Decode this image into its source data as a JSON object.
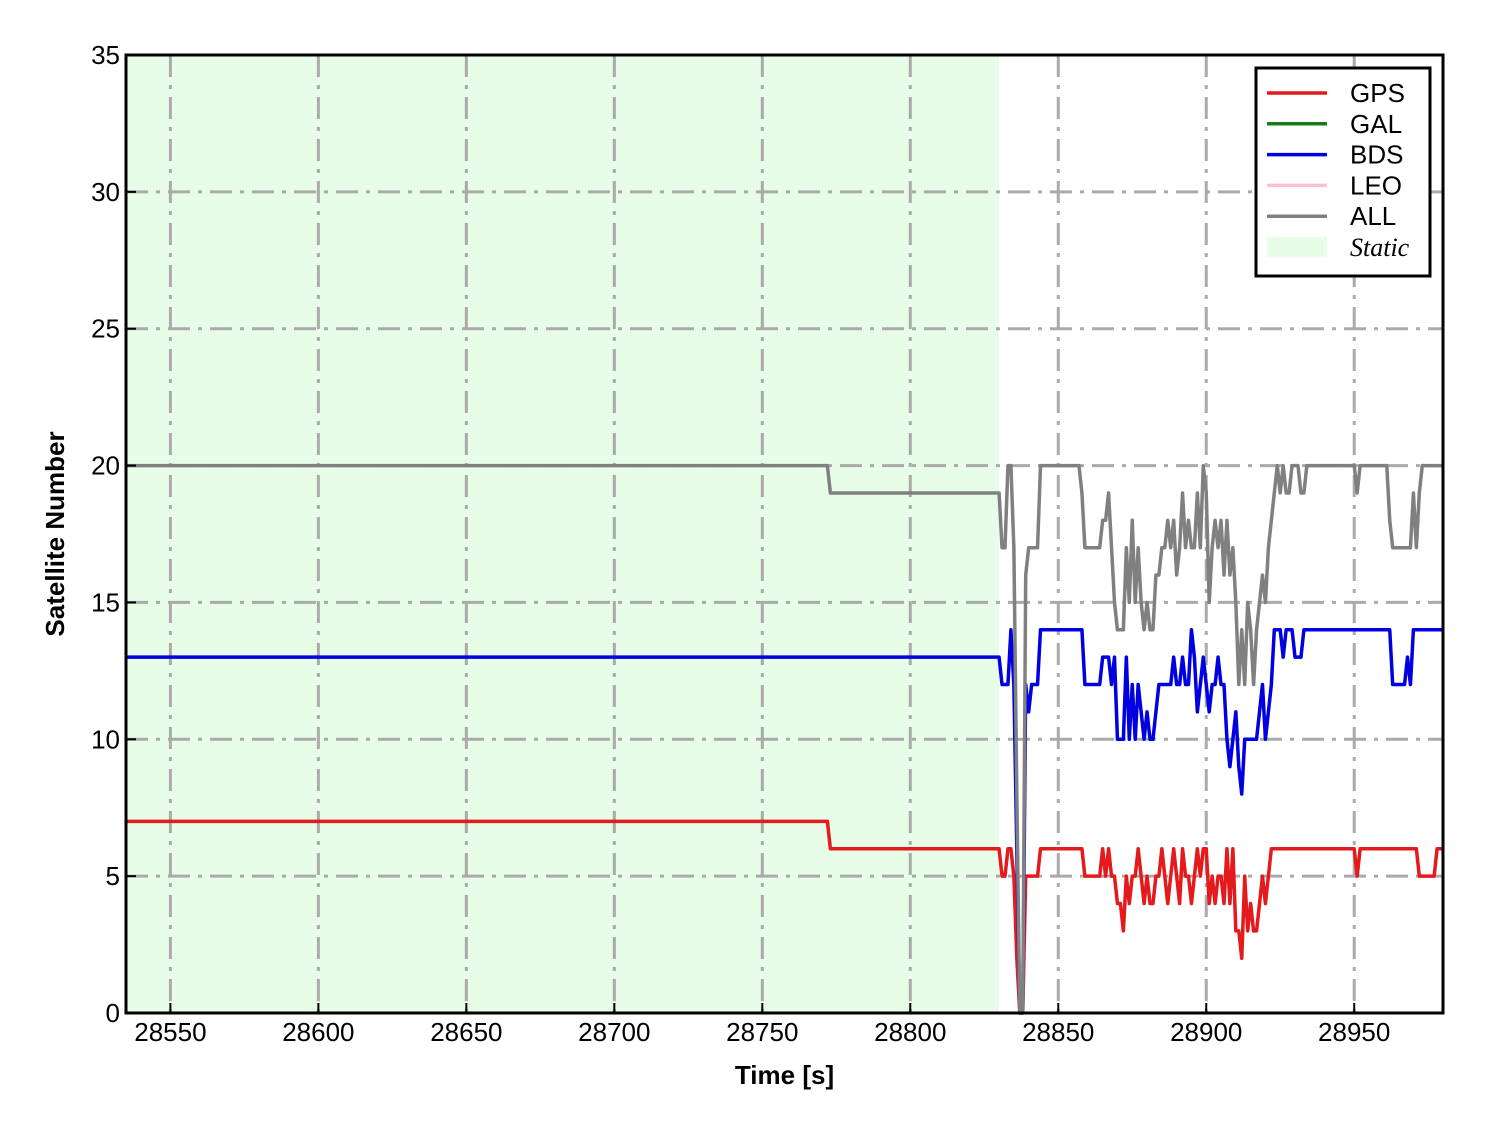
{
  "chart_data": {
    "type": "line",
    "xlabel": "Time [s]",
    "ylabel": "Satellite Number",
    "xlim": [
      28535,
      28980
    ],
    "ylim": [
      0,
      35
    ],
    "xticks": [
      28550,
      28600,
      28650,
      28700,
      28750,
      28800,
      28850,
      28900,
      28950
    ],
    "yticks": [
      0,
      5,
      10,
      15,
      20,
      25,
      30,
      35
    ],
    "grid": true,
    "legend_position": "top-right",
    "static_region": {
      "label": "Static",
      "x_start": 28535,
      "x_end": 28830,
      "color": "#e8fde8"
    },
    "series": [
      {
        "name": "GPS",
        "color": "#e41a1c",
        "points": [
          [
            28535,
            7
          ],
          [
            28772,
            7
          ],
          [
            28773,
            6
          ],
          [
            28830,
            6
          ],
          [
            28831,
            5
          ],
          [
            28832,
            5
          ],
          [
            28833,
            6
          ],
          [
            28834,
            6
          ],
          [
            28835,
            5
          ],
          [
            28836,
            2
          ],
          [
            28837,
            0
          ],
          [
            28838,
            0
          ],
          [
            28839,
            5
          ],
          [
            28843,
            5
          ],
          [
            28844,
            6
          ],
          [
            28858,
            6
          ],
          [
            28859,
            5
          ],
          [
            28864,
            5
          ],
          [
            28865,
            6
          ],
          [
            28866,
            5
          ],
          [
            28867,
            6
          ],
          [
            28868,
            5
          ],
          [
            28869,
            5
          ],
          [
            28870,
            4
          ],
          [
            28871,
            4
          ],
          [
            28872,
            3
          ],
          [
            28873,
            5
          ],
          [
            28874,
            4
          ],
          [
            28875,
            5
          ],
          [
            28876,
            5
          ],
          [
            28877,
            6
          ],
          [
            28878,
            5
          ],
          [
            28879,
            4
          ],
          [
            28880,
            5
          ],
          [
            28881,
            4
          ],
          [
            28882,
            4
          ],
          [
            28883,
            5
          ],
          [
            28884,
            5
          ],
          [
            28885,
            6
          ],
          [
            28886,
            5
          ],
          [
            28887,
            4
          ],
          [
            28888,
            5
          ],
          [
            28889,
            6
          ],
          [
            28890,
            5
          ],
          [
            28891,
            4
          ],
          [
            28892,
            6
          ],
          [
            28893,
            5
          ],
          [
            28894,
            5
          ],
          [
            28895,
            4
          ],
          [
            28896,
            5
          ],
          [
            28897,
            6
          ],
          [
            28898,
            5
          ],
          [
            28899,
            6
          ],
          [
            28900,
            6
          ],
          [
            28901,
            4
          ],
          [
            28902,
            5
          ],
          [
            28903,
            4
          ],
          [
            28904,
            5
          ],
          [
            28905,
            5
          ],
          [
            28906,
            4
          ],
          [
            28907,
            6
          ],
          [
            28908,
            4
          ],
          [
            28909,
            6
          ],
          [
            28910,
            3
          ],
          [
            28911,
            3
          ],
          [
            28912,
            2
          ],
          [
            28913,
            5
          ],
          [
            28914,
            3
          ],
          [
            28915,
            4
          ],
          [
            28916,
            3
          ],
          [
            28917,
            3
          ],
          [
            28918,
            4
          ],
          [
            28919,
            5
          ],
          [
            28920,
            4
          ],
          [
            28921,
            5
          ],
          [
            28922,
            6
          ],
          [
            28950,
            6
          ],
          [
            28951,
            5
          ],
          [
            28952,
            6
          ],
          [
            28971,
            6
          ],
          [
            28972,
            5
          ],
          [
            28977,
            5
          ],
          [
            28978,
            6
          ],
          [
            28980,
            6
          ]
        ]
      },
      {
        "name": "GAL",
        "color": "#1a7a1a",
        "points": []
      },
      {
        "name": "BDS",
        "color": "#0000e0",
        "points": [
          [
            28535,
            13
          ],
          [
            28830,
            13
          ],
          [
            28831,
            12
          ],
          [
            28833,
            12
          ],
          [
            28834,
            14
          ],
          [
            28835,
            12
          ],
          [
            28836,
            6
          ],
          [
            28837,
            0
          ],
          [
            28838,
            0
          ],
          [
            28839,
            12
          ],
          [
            28840,
            11
          ],
          [
            28841,
            12
          ],
          [
            28843,
            12
          ],
          [
            28844,
            14
          ],
          [
            28858,
            14
          ],
          [
            28859,
            12
          ],
          [
            28864,
            12
          ],
          [
            28865,
            13
          ],
          [
            28867,
            13
          ],
          [
            28868,
            12
          ],
          [
            28869,
            13
          ],
          [
            28870,
            10
          ],
          [
            28871,
            10
          ],
          [
            28872,
            10
          ],
          [
            28873,
            13
          ],
          [
            28874,
            10
          ],
          [
            28875,
            12
          ],
          [
            28876,
            10
          ],
          [
            28877,
            12
          ],
          [
            28878,
            11
          ],
          [
            28879,
            10
          ],
          [
            28880,
            11
          ],
          [
            28881,
            10
          ],
          [
            28882,
            10
          ],
          [
            28883,
            11
          ],
          [
            28884,
            12
          ],
          [
            28885,
            12
          ],
          [
            28886,
            12
          ],
          [
            28887,
            12
          ],
          [
            28888,
            12
          ],
          [
            28889,
            13
          ],
          [
            28890,
            12
          ],
          [
            28891,
            12
          ],
          [
            28892,
            13
          ],
          [
            28893,
            12
          ],
          [
            28894,
            12
          ],
          [
            28895,
            14
          ],
          [
            28896,
            13
          ],
          [
            28897,
            11
          ],
          [
            28898,
            12
          ],
          [
            28899,
            13
          ],
          [
            28900,
            12
          ],
          [
            28901,
            11
          ],
          [
            28902,
            12
          ],
          [
            28903,
            12
          ],
          [
            28904,
            13
          ],
          [
            28905,
            12
          ],
          [
            28906,
            12
          ],
          [
            28907,
            10
          ],
          [
            28908,
            9
          ],
          [
            28909,
            10
          ],
          [
            28910,
            11
          ],
          [
            28911,
            9
          ],
          [
            28912,
            8
          ],
          [
            28913,
            10
          ],
          [
            28914,
            10
          ],
          [
            28915,
            10
          ],
          [
            28916,
            10
          ],
          [
            28917,
            10
          ],
          [
            28918,
            11
          ],
          [
            28919,
            12
          ],
          [
            28920,
            10
          ],
          [
            28921,
            11
          ],
          [
            28922,
            12
          ],
          [
            28923,
            14
          ],
          [
            28925,
            14
          ],
          [
            28926,
            13
          ],
          [
            28927,
            14
          ],
          [
            28929,
            14
          ],
          [
            28930,
            13
          ],
          [
            28932,
            13
          ],
          [
            28933,
            14
          ],
          [
            28962,
            14
          ],
          [
            28963,
            12
          ],
          [
            28967,
            12
          ],
          [
            28968,
            13
          ],
          [
            28969,
            12
          ],
          [
            28970,
            14
          ],
          [
            28980,
            14
          ]
        ]
      },
      {
        "name": "LEO",
        "color": "#ffc0cb",
        "points": []
      },
      {
        "name": "ALL",
        "color": "#808080",
        "points": [
          [
            28535,
            20
          ],
          [
            28772,
            20
          ],
          [
            28773,
            19
          ],
          [
            28830,
            19
          ],
          [
            28831,
            17
          ],
          [
            28832,
            17
          ],
          [
            28833,
            20
          ],
          [
            28834,
            20
          ],
          [
            28835,
            17
          ],
          [
            28836,
            8
          ],
          [
            28837,
            0
          ],
          [
            28838,
            0
          ],
          [
            28839,
            16
          ],
          [
            28840,
            17
          ],
          [
            28843,
            17
          ],
          [
            28844,
            20
          ],
          [
            28857,
            20
          ],
          [
            28858,
            19
          ],
          [
            28859,
            17
          ],
          [
            28864,
            17
          ],
          [
            28865,
            18
          ],
          [
            28866,
            18
          ],
          [
            28867,
            19
          ],
          [
            28868,
            17
          ],
          [
            28869,
            15
          ],
          [
            28870,
            14
          ],
          [
            28871,
            14
          ],
          [
            28872,
            14
          ],
          [
            28873,
            17
          ],
          [
            28874,
            15
          ],
          [
            28875,
            18
          ],
          [
            28876,
            15
          ],
          [
            28877,
            17
          ],
          [
            28878,
            15
          ],
          [
            28879,
            14
          ],
          [
            28880,
            15
          ],
          [
            28881,
            14
          ],
          [
            28882,
            14
          ],
          [
            28883,
            16
          ],
          [
            28884,
            16
          ],
          [
            28885,
            17
          ],
          [
            28886,
            17
          ],
          [
            28887,
            18
          ],
          [
            28888,
            17
          ],
          [
            28889,
            18
          ],
          [
            28890,
            16
          ],
          [
            28891,
            17
          ],
          [
            28892,
            19
          ],
          [
            28893,
            17
          ],
          [
            28894,
            18
          ],
          [
            28895,
            17
          ],
          [
            28896,
            17
          ],
          [
            28897,
            19
          ],
          [
            28898,
            17
          ],
          [
            28899,
            20
          ],
          [
            28900,
            19
          ],
          [
            28901,
            15
          ],
          [
            28902,
            17
          ],
          [
            28903,
            18
          ],
          [
            28904,
            17
          ],
          [
            28905,
            18
          ],
          [
            28906,
            16
          ],
          [
            28907,
            18
          ],
          [
            28908,
            16
          ],
          [
            28909,
            17
          ],
          [
            28910,
            15
          ],
          [
            28911,
            12
          ],
          [
            28912,
            14
          ],
          [
            28913,
            12
          ],
          [
            28914,
            15
          ],
          [
            28915,
            14
          ],
          [
            28916,
            12
          ],
          [
            28917,
            14
          ],
          [
            28918,
            15
          ],
          [
            28919,
            16
          ],
          [
            28920,
            15
          ],
          [
            28921,
            17
          ],
          [
            28922,
            18
          ],
          [
            28923,
            19
          ],
          [
            28924,
            20
          ],
          [
            28925,
            19
          ],
          [
            28926,
            20
          ],
          [
            28927,
            19
          ],
          [
            28928,
            19
          ],
          [
            28929,
            20
          ],
          [
            28931,
            20
          ],
          [
            28932,
            19
          ],
          [
            28933,
            19
          ],
          [
            28934,
            20
          ],
          [
            28950,
            20
          ],
          [
            28951,
            19
          ],
          [
            28952,
            20
          ],
          [
            28961,
            20
          ],
          [
            28962,
            18
          ],
          [
            28963,
            17
          ],
          [
            28969,
            17
          ],
          [
            28970,
            19
          ],
          [
            28971,
            17
          ],
          [
            28972,
            19
          ],
          [
            28973,
            20
          ],
          [
            28980,
            20
          ]
        ]
      }
    ]
  }
}
